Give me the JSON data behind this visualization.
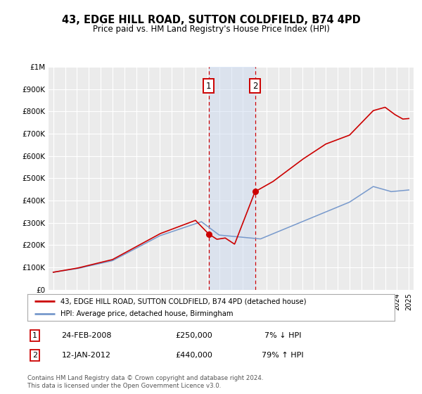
{
  "title": "43, EDGE HILL ROAD, SUTTON COLDFIELD, B74 4PD",
  "subtitle": "Price paid vs. HM Land Registry's House Price Index (HPI)",
  "ylim": [
    0,
    1000000
  ],
  "yticks": [
    0,
    100000,
    200000,
    300000,
    400000,
    500000,
    600000,
    700000,
    800000,
    900000,
    1000000
  ],
  "ytick_labels": [
    "£0",
    "£100K",
    "£200K",
    "£300K",
    "£400K",
    "£500K",
    "£600K",
    "£700K",
    "£800K",
    "£900K",
    "£1M"
  ],
  "xlim_start": 1994.6,
  "xlim_end": 2025.4,
  "background_color": "#ffffff",
  "plot_bg_color": "#ebebeb",
  "grid_color": "#ffffff",
  "hpi_line_color": "#7799cc",
  "price_line_color": "#cc0000",
  "sale1_x": 2008.12,
  "sale1_y": 250000,
  "sale2_x": 2012.03,
  "sale2_y": 440000,
  "sale1_label": "1",
  "sale2_label": "2",
  "shade_color": "#c8d8f0",
  "dashed_line_color": "#cc0000",
  "legend_line1": "43, EDGE HILL ROAD, SUTTON COLDFIELD, B74 4PD (detached house)",
  "legend_line2": "HPI: Average price, detached house, Birmingham",
  "table_row1_num": "1",
  "table_row1_date": "24-FEB-2008",
  "table_row1_price": "£250,000",
  "table_row1_hpi": "7% ↓ HPI",
  "table_row2_num": "2",
  "table_row2_date": "12-JAN-2012",
  "table_row2_price": "£440,000",
  "table_row2_hpi": "79% ↑ HPI",
  "footnote1": "Contains HM Land Registry data © Crown copyright and database right 2024.",
  "footnote2": "This data is licensed under the Open Government Licence v3.0."
}
